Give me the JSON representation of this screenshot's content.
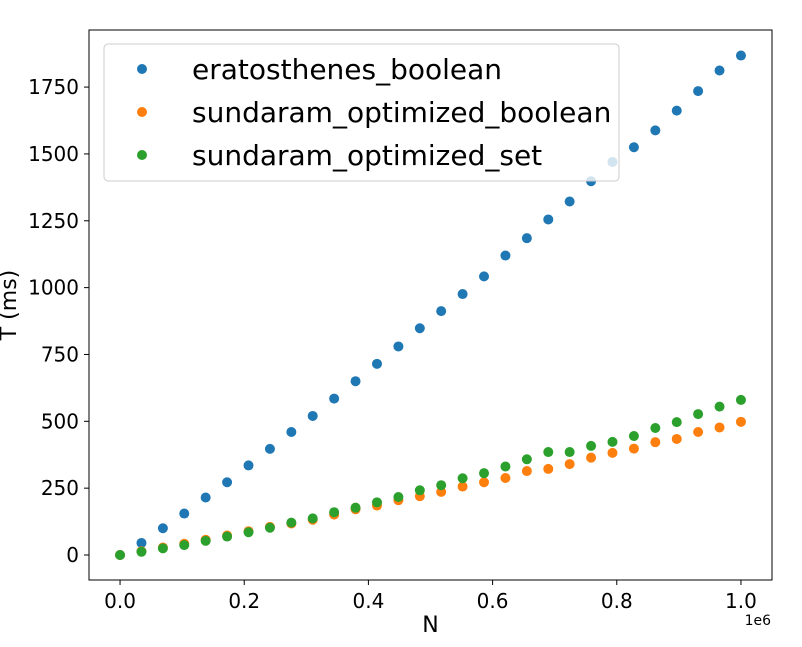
{
  "chart_data": {
    "type": "scatter",
    "title": "",
    "xlabel": "N",
    "ylabel": "T (ms)",
    "x_offset_label": "1e6",
    "xlim": [
      -0.05,
      1.05
    ],
    "ylim": [
      -93.5,
      1963.5
    ],
    "x_ticks": [
      0.0,
      0.2,
      0.4,
      0.6,
      0.8,
      1.0
    ],
    "x_tick_labels": [
      "0.0",
      "0.2",
      "0.4",
      "0.6",
      "0.8",
      "1.0"
    ],
    "y_ticks": [
      0,
      250,
      500,
      750,
      1000,
      1250,
      1500,
      1750
    ],
    "y_tick_labels": [
      "0",
      "250",
      "500",
      "750",
      "1000",
      "1250",
      "1500",
      "1750"
    ],
    "grid": false,
    "legend_position": "upper-left",
    "x": [
      0,
      0.0345,
      0.069,
      0.1034,
      0.1379,
      0.1724,
      0.2069,
      0.2414,
      0.2759,
      0.3103,
      0.3448,
      0.3793,
      0.4138,
      0.4483,
      0.4828,
      0.5172,
      0.5517,
      0.5862,
      0.6207,
      0.6552,
      0.6897,
      0.7241,
      0.7586,
      0.7931,
      0.8276,
      0.8621,
      0.8966,
      0.931,
      0.9655,
      1.0
    ],
    "series": [
      {
        "name": "eratosthenes_boolean",
        "color": "#1f77b4",
        "values": [
          0,
          45,
          100,
          155,
          215,
          272,
          335,
          397,
          460,
          520,
          585,
          650,
          715,
          780,
          848,
          912,
          976,
          1042,
          1120,
          1185,
          1255,
          1322,
          1398,
          1470,
          1525,
          1588,
          1662,
          1735,
          1812,
          1868
        ]
      },
      {
        "name": "sundaram_optimized_boolean",
        "color": "#ff7f0e",
        "values": [
          0,
          14,
          28,
          42,
          57,
          73,
          89,
          105,
          118,
          132,
          151,
          171,
          185,
          205,
          220,
          236,
          256,
          272,
          288,
          314,
          322,
          340,
          364,
          382,
          398,
          422,
          434,
          460,
          477,
          498
        ]
      },
      {
        "name": "sundaram_optimized_set",
        "color": "#2ca02c",
        "values": [
          0,
          12,
          25,
          37,
          53,
          69,
          85,
          102,
          121,
          137,
          160,
          177,
          197,
          217,
          242,
          261,
          287,
          306,
          331,
          358,
          385,
          385,
          408,
          423,
          445,
          475,
          497,
          527,
          555,
          580
        ]
      }
    ]
  }
}
